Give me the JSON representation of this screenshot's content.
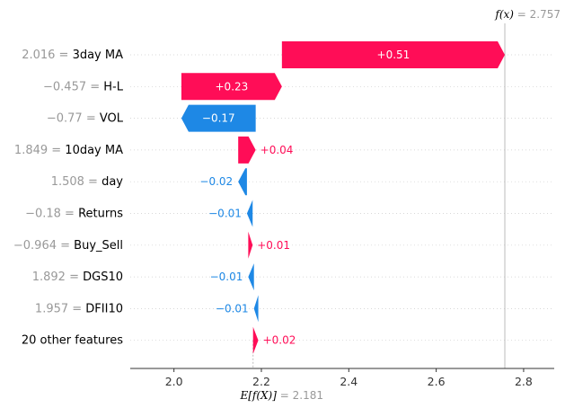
{
  "chart_data": {
    "type": "waterfall",
    "base_value": 2.181,
    "base_label": "E[f(X)]",
    "base_display": "2.181",
    "output_value": 2.757,
    "output_label": "f(x)",
    "output_display": "2.757",
    "xlim": [
      1.9,
      2.87
    ],
    "xticks": [
      2.0,
      2.2,
      2.4,
      2.6,
      2.8
    ],
    "xtick_labels": [
      "2.0",
      "2.2",
      "2.4",
      "2.6",
      "2.8"
    ],
    "positive_color": "#ff0d57",
    "negative_color": "#1e88e5",
    "features": [
      {
        "value": "2.016",
        "name": "3day MA",
        "contribution": 0.51,
        "label": "+0.51",
        "start": 2.247,
        "end": 2.757
      },
      {
        "value": "−0.457",
        "name": "H-L",
        "contribution": 0.23,
        "label": "+0.23",
        "start": 2.017,
        "end": 2.247
      },
      {
        "value": "−0.77",
        "name": "VOL",
        "contribution": -0.17,
        "label": "−0.17",
        "start": 2.187,
        "end": 2.017
      },
      {
        "value": "1.849",
        "name": "10day MA",
        "contribution": 0.04,
        "label": "+0.04",
        "start": 2.147,
        "end": 2.187
      },
      {
        "value": "1.508",
        "name": "day",
        "contribution": -0.02,
        "label": "−0.02",
        "start": 2.167,
        "end": 2.147
      },
      {
        "value": "−0.18",
        "name": "Returns",
        "contribution": -0.01,
        "label": "−0.01",
        "start": 2.18,
        "end": 2.167
      },
      {
        "value": "−0.964",
        "name": "Buy_Sell",
        "contribution": 0.01,
        "label": "+0.01",
        "start": 2.17,
        "end": 2.18
      },
      {
        "value": "1.892",
        "name": "DGS10",
        "contribution": -0.01,
        "label": "−0.01",
        "start": 2.183,
        "end": 2.17
      },
      {
        "value": "1.957",
        "name": "DFII10",
        "contribution": -0.01,
        "label": "−0.01",
        "start": 2.193,
        "end": 2.183
      },
      {
        "value": "",
        "name": "20 other features",
        "contribution": 0.02,
        "label": "+0.02",
        "start": 2.181,
        "end": 2.193
      }
    ]
  }
}
